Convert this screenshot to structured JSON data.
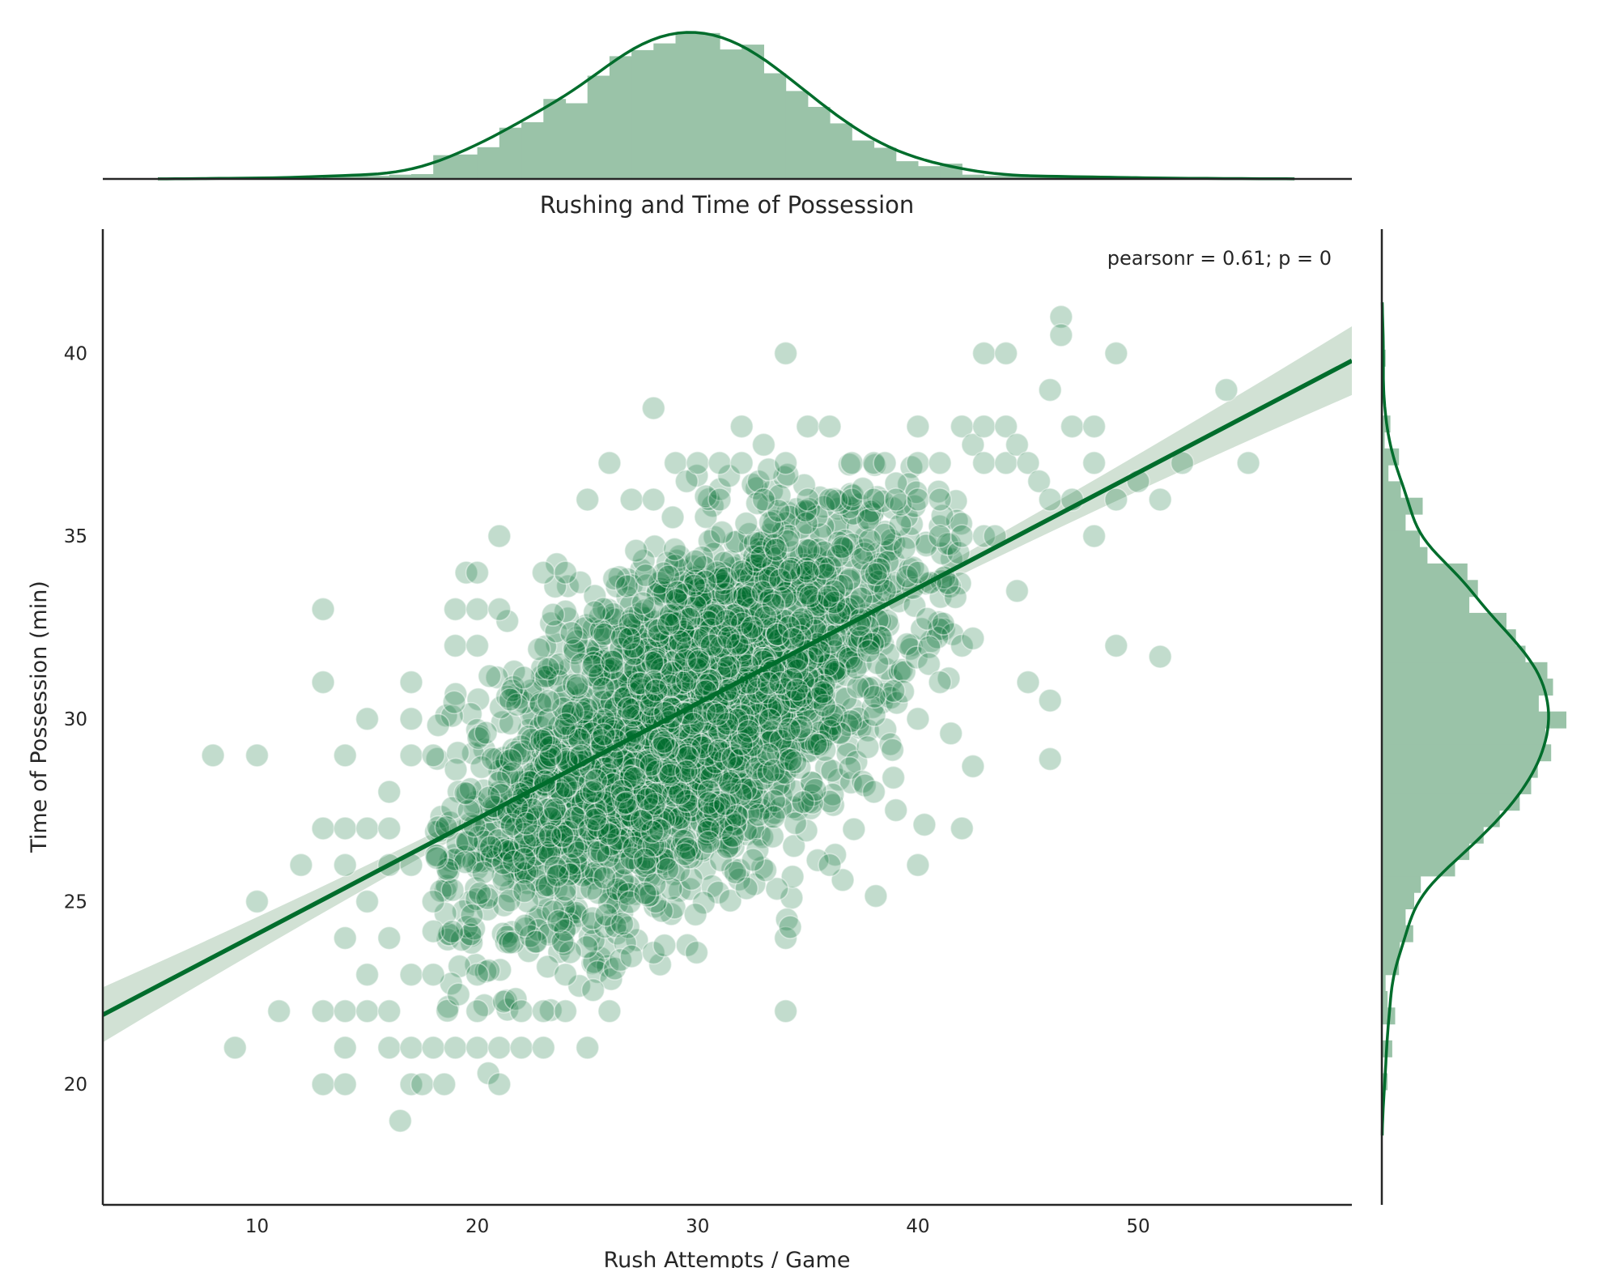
{
  "colors": {
    "marker": "#006d2c",
    "hist": "#9ac3a8",
    "line": "#006d2c",
    "ci_band": "#c9dccd",
    "axes": "#262626"
  },
  "chart_data": {
    "type": "scatter",
    "title": "Rushing and Time of Possession",
    "xlabel": "Rush Attempts / Game",
    "ylabel": "Time of Possession (min)",
    "xlim": [
      3,
      59.7
    ],
    "ylim": [
      16.7,
      43.4
    ],
    "xticks": [
      "10",
      "20",
      "30",
      "40",
      "50"
    ],
    "yticks": [
      "20",
      "25",
      "30",
      "35",
      "40"
    ],
    "annotation": "pearsonr = 0.61; p = 0",
    "grid": false,
    "regression": {
      "x_start": 3,
      "y_start": 21.9,
      "x_end": 59.7,
      "y_end": 39.8
    },
    "scatter_cloud": {
      "approx_points": 3000,
      "x_mean": 29.5,
      "x_sd": 5.2,
      "y_mean": 30.0,
      "y_sd": 2.85,
      "correlation": 0.61
    },
    "points": [
      [
        8,
        29
      ],
      [
        10,
        29
      ],
      [
        9,
        21
      ],
      [
        10,
        25
      ],
      [
        11,
        22
      ],
      [
        12,
        26
      ],
      [
        13,
        33
      ],
      [
        13,
        31
      ],
      [
        13,
        27
      ],
      [
        13,
        22
      ],
      [
        13,
        20
      ],
      [
        14,
        29
      ],
      [
        14,
        27
      ],
      [
        14,
        26
      ],
      [
        14,
        24
      ],
      [
        14,
        22
      ],
      [
        14,
        21
      ],
      [
        14,
        20
      ],
      [
        15,
        30
      ],
      [
        15,
        27
      ],
      [
        15,
        25
      ],
      [
        15,
        23
      ],
      [
        15,
        22
      ],
      [
        16,
        28
      ],
      [
        16,
        27
      ],
      [
        16,
        26
      ],
      [
        16,
        24
      ],
      [
        16,
        22
      ],
      [
        16,
        21
      ],
      [
        16.5,
        19
      ],
      [
        17,
        31
      ],
      [
        17,
        30
      ],
      [
        17,
        29
      ],
      [
        17,
        26
      ],
      [
        17,
        23
      ],
      [
        17,
        21
      ],
      [
        17,
        20
      ],
      [
        17.5,
        20
      ],
      [
        18,
        29
      ],
      [
        18,
        25
      ],
      [
        18,
        23
      ],
      [
        18,
        21
      ],
      [
        18.5,
        20
      ],
      [
        19,
        33
      ],
      [
        19,
        32
      ],
      [
        19,
        21
      ],
      [
        19.5,
        34
      ],
      [
        20,
        34
      ],
      [
        20,
        33
      ],
      [
        20,
        32
      ],
      [
        20,
        23
      ],
      [
        20,
        22
      ],
      [
        20,
        21
      ],
      [
        20.5,
        20.3
      ],
      [
        21,
        35
      ],
      [
        21,
        33
      ],
      [
        21,
        21
      ],
      [
        21,
        20
      ],
      [
        22,
        22
      ],
      [
        22,
        21
      ],
      [
        23,
        34
      ],
      [
        23,
        22
      ],
      [
        23,
        21
      ],
      [
        24,
        34
      ],
      [
        24,
        23
      ],
      [
        24,
        22
      ],
      [
        25,
        36
      ],
      [
        25,
        21
      ],
      [
        26,
        37
      ],
      [
        26,
        22
      ],
      [
        26.5,
        23.4
      ],
      [
        27,
        36
      ],
      [
        27,
        23.5
      ],
      [
        28,
        38.5
      ],
      [
        28,
        36
      ],
      [
        28,
        23.6
      ],
      [
        28.5,
        23.8
      ],
      [
        29,
        37
      ],
      [
        29.5,
        36.5
      ],
      [
        30,
        37
      ],
      [
        31,
        37
      ],
      [
        31,
        36
      ],
      [
        32,
        38
      ],
      [
        32,
        37
      ],
      [
        33,
        37.5
      ],
      [
        33,
        36
      ],
      [
        34,
        40
      ],
      [
        34,
        37
      ],
      [
        34,
        24
      ],
      [
        34,
        22
      ],
      [
        34.2,
        24.3
      ],
      [
        35,
        38
      ],
      [
        35,
        36
      ],
      [
        36,
        38
      ],
      [
        36,
        36
      ],
      [
        36,
        26
      ],
      [
        37,
        37
      ],
      [
        37,
        36
      ],
      [
        37.5,
        36.3
      ],
      [
        38,
        37
      ],
      [
        38,
        36
      ],
      [
        38,
        28
      ],
      [
        38.5,
        37
      ],
      [
        39,
        36
      ],
      [
        39,
        27.5
      ],
      [
        40,
        38
      ],
      [
        40,
        37
      ],
      [
        40,
        36
      ],
      [
        40,
        34
      ],
      [
        40,
        26
      ],
      [
        40,
        30
      ],
      [
        40.5,
        31.5
      ],
      [
        41,
        37
      ],
      [
        41,
        36
      ],
      [
        41,
        35
      ],
      [
        41,
        31
      ],
      [
        41.5,
        29.6
      ],
      [
        42,
        38
      ],
      [
        42,
        35
      ],
      [
        42,
        32
      ],
      [
        42,
        27
      ],
      [
        42.5,
        37.5
      ],
      [
        42.5,
        32.2
      ],
      [
        42.5,
        28.7
      ],
      [
        43,
        40
      ],
      [
        43,
        38
      ],
      [
        43,
        37
      ],
      [
        43,
        35
      ],
      [
        43.5,
        35
      ],
      [
        44,
        40
      ],
      [
        44,
        38
      ],
      [
        44,
        37
      ],
      [
        44.5,
        33.5
      ],
      [
        44.5,
        37.5
      ],
      [
        45,
        37
      ],
      [
        45,
        31
      ],
      [
        45.5,
        36.5
      ],
      [
        46,
        36
      ],
      [
        46,
        39
      ],
      [
        46,
        28.9
      ],
      [
        46,
        30.5
      ],
      [
        46.5,
        41
      ],
      [
        46.5,
        40.5
      ],
      [
        47,
        38
      ],
      [
        47,
        36
      ],
      [
        48,
        38
      ],
      [
        48,
        37
      ],
      [
        48,
        35
      ],
      [
        49,
        40
      ],
      [
        49,
        36
      ],
      [
        49,
        32
      ],
      [
        50,
        36.5
      ],
      [
        51,
        31.7
      ],
      [
        51,
        36
      ],
      [
        52,
        37
      ],
      [
        54,
        39
      ],
      [
        55,
        37
      ]
    ]
  }
}
